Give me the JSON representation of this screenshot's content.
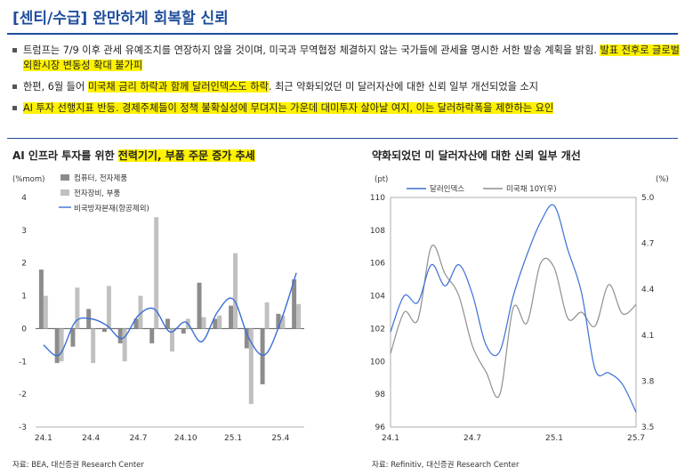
{
  "header": {
    "title": "[센티/수급] 완만하게 회복할 신뢰"
  },
  "bullets": [
    {
      "parts": [
        {
          "text": "트럼프는 7/9 이후 관세 유예조치를 연장하지 않을 것이며, 미국과 무역협정 체결하지 않는 국가들에 관세율 명시한 서한 발송 계획을 밝힘. ",
          "hl": false
        },
        {
          "text": "발표 전후로 글로벌 외환시장 변동성 확대 불가피",
          "hl": true
        }
      ]
    },
    {
      "parts": [
        {
          "text": "한편, 6월 들어 ",
          "hl": false
        },
        {
          "text": "미국채 금리 하락과 함께 달러인덱스도 하락",
          "hl": true
        },
        {
          "text": ". 최근 약화되었던 미 달러자산에 대한 신뢰 일부 개선되었을 소지",
          "hl": false
        }
      ]
    },
    {
      "parts": [
        {
          "text": "AI 투자 선행지표 반등. 경제주체들이 정책 불확실성에 무뎌지는 가운데 대미투자 살아날 여지, 이는 달러하락폭을 제한하는 요인",
          "hl": true
        }
      ]
    }
  ],
  "left_panel": {
    "title_plain": "AI 인프라 투자를 위한 ",
    "title_hl": "전력기기, 부품 주문 증가 추세",
    "source": "자료: BEA, 대신증권 Research Center"
  },
  "right_panel": {
    "title": "약화되었던 미 달러자산에 대한 신뢰 일부 개선",
    "source": "자료: Refinitiv, 대신증권 Research Center"
  },
  "colors": {
    "accent": "#1f4e9c",
    "highlight": "#fff200",
    "bar_dark": "#8c8c8c",
    "bar_light": "#c0c0c0",
    "line_blue": "#3b6fd6",
    "line_gray": "#8f8f8f"
  },
  "chart_data": [
    {
      "type": "bar",
      "title": "AI 인프라 투자를 위한 전력기기, 부품 주문 증가 추세",
      "ylabel": "(%mom)",
      "ylim": [
        -3,
        4
      ],
      "yticks": [
        -3,
        -2,
        -1,
        0,
        1,
        2,
        3,
        4
      ],
      "xtick_labels": [
        "24.1",
        "24.4",
        "24.7",
        "24.10",
        "25.1",
        "25.4"
      ],
      "categories": [
        "24.1",
        "24.2",
        "24.3",
        "24.4",
        "24.5",
        "24.6",
        "24.7",
        "24.8",
        "24.9",
        "24.10",
        "24.11",
        "24.12",
        "25.1",
        "25.2",
        "25.3",
        "25.4",
        "25.5"
      ],
      "legend_position": "top-left",
      "series": [
        {
          "name": "컴퓨터, 전자제품",
          "kind": "bar",
          "values": [
            1.8,
            -1.05,
            -0.55,
            0.6,
            -0.1,
            -0.45,
            0.3,
            -0.45,
            0.3,
            -0.15,
            1.4,
            0.3,
            0.7,
            -0.6,
            -1.7,
            0.45,
            1.5
          ]
        },
        {
          "name": "전자장비, 부품",
          "kind": "bar",
          "values": [
            1.0,
            -1.0,
            1.25,
            -1.05,
            1.3,
            -1.0,
            1.0,
            3.4,
            -0.7,
            0.3,
            0.35,
            0.4,
            2.3,
            -2.3,
            0.8,
            0.4,
            0.75
          ]
        },
        {
          "name": "비국방자본재(항공제외)",
          "kind": "line",
          "values": [
            -0.5,
            -0.8,
            0.2,
            0.3,
            0.1,
            -0.3,
            0.4,
            0.6,
            -0.1,
            0.2,
            -0.4,
            0.5,
            0.9,
            -0.3,
            -0.8,
            0.2,
            1.7
          ]
        }
      ]
    },
    {
      "type": "line",
      "title": "약화되었던 미 달러자산에 대한 신뢰 일부 개선",
      "xlabel": "",
      "x_range": [
        "24.1",
        "25.7"
      ],
      "xtick_labels": [
        "24.1",
        "24.7",
        "25.1",
        "25.7"
      ],
      "legend_position": "top-left",
      "left_axis": {
        "unit": "(pt)",
        "ylim": [
          96,
          110
        ],
        "yticks": [
          96,
          98,
          100,
          102,
          104,
          106,
          108,
          110
        ]
      },
      "right_axis": {
        "unit": "(%)",
        "ylim": [
          3.5,
          5.0
        ],
        "yticks": [
          3.5,
          3.8,
          4.1,
          4.4,
          4.7,
          5.0
        ]
      },
      "series": [
        {
          "name": "달러인덱스",
          "axis": "left",
          "points": [
            [
              "24.1",
              101.8
            ],
            [
              "24.2",
              104.0
            ],
            [
              "24.3",
              103.6
            ],
            [
              "24.4",
              105.9
            ],
            [
              "24.5",
              104.6
            ],
            [
              "24.6",
              105.9
            ],
            [
              "24.7",
              104.1
            ],
            [
              "24.8",
              101.0
            ],
            [
              "24.9",
              100.6
            ],
            [
              "24.10",
              104.0
            ],
            [
              "24.11",
              106.5
            ],
            [
              "24.12",
              108.5
            ],
            [
              "25.1",
              109.5
            ],
            [
              "25.2",
              106.8
            ],
            [
              "25.3",
              104.2
            ],
            [
              "25.4",
              99.5
            ],
            [
              "25.5",
              99.3
            ],
            [
              "25.6",
              98.6
            ],
            [
              "25.7",
              96.9
            ]
          ]
        },
        {
          "name": "미국채 10Y(우)",
          "axis": "right",
          "points": [
            [
              "24.1",
              3.98
            ],
            [
              "24.2",
              4.25
            ],
            [
              "24.3",
              4.2
            ],
            [
              "24.4",
              4.68
            ],
            [
              "24.5",
              4.5
            ],
            [
              "24.6",
              4.36
            ],
            [
              "24.7",
              4.03
            ],
            [
              "24.8",
              3.86
            ],
            [
              "24.9",
              3.71
            ],
            [
              "24.10",
              4.28
            ],
            [
              "24.11",
              4.18
            ],
            [
              "24.12",
              4.57
            ],
            [
              "25.1",
              4.54
            ],
            [
              "25.2",
              4.21
            ],
            [
              "25.3",
              4.25
            ],
            [
              "25.4",
              4.16
            ],
            [
              "25.5",
              4.43
            ],
            [
              "25.6",
              4.24
            ],
            [
              "25.7",
              4.3
            ]
          ]
        }
      ]
    }
  ]
}
